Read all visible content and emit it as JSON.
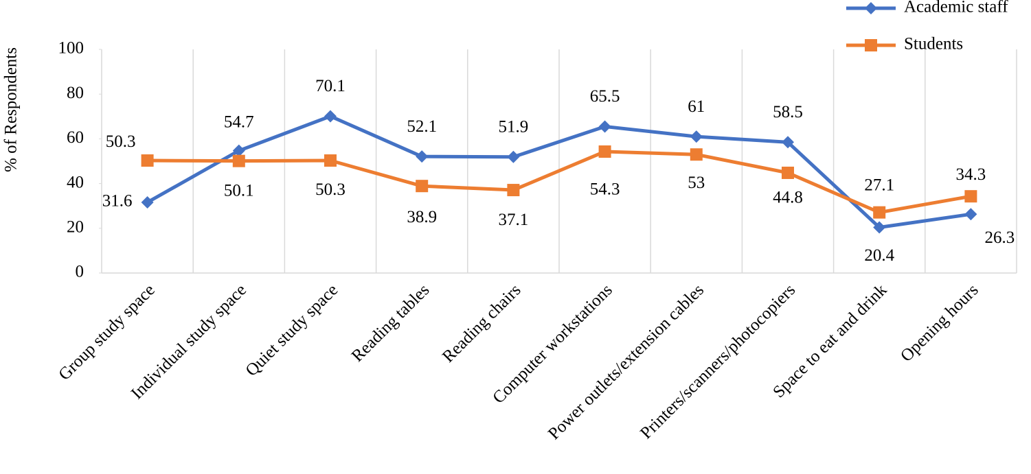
{
  "chart_data": {
    "type": "line",
    "y_label": "% of Respondents",
    "categories": [
      "Group study space",
      "Individual study space",
      "Quiet study space",
      "Reading tables",
      "Reading chairs",
      "Computer workstations",
      "Power outlets/extension cables",
      "Printers/scanners/photocopiers",
      "Space to eat and drink",
      "Opening hours"
    ],
    "series": [
      {
        "name": "Academic staff",
        "color": "#4472c4",
        "marker": "diamond",
        "values": [
          31.6,
          54.7,
          70.1,
          52.1,
          51.9,
          65.5,
          61,
          58.5,
          20.4,
          26.3
        ]
      },
      {
        "name": "Students",
        "color": "#ed7d31",
        "marker": "square",
        "values": [
          50.3,
          50.1,
          50.3,
          38.9,
          37.1,
          54.3,
          53,
          44.8,
          27.1,
          34.3
        ]
      }
    ],
    "ylim": [
      0,
      100
    ],
    "yticks": [
      0,
      20,
      40,
      60,
      80,
      100
    ],
    "grid": "vertical",
    "legend": "top-right"
  }
}
